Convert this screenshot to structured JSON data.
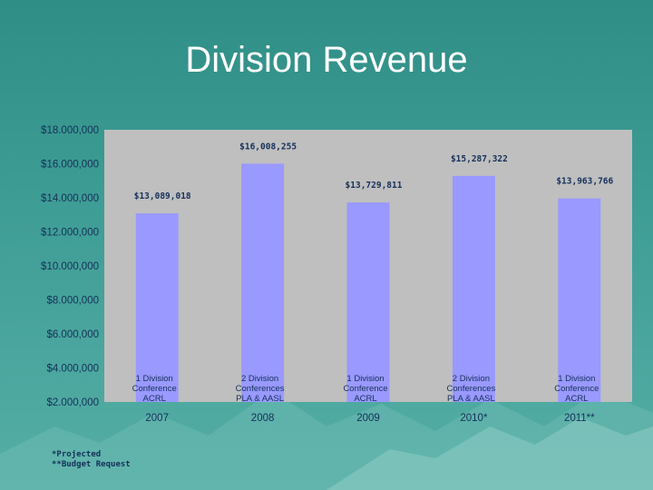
{
  "slide": {
    "title": "Division Revenue",
    "footnotes": [
      "*Projected",
      "**Budget Request"
    ],
    "colors": {
      "background": "#3a988f",
      "plot_area": "#bfbfbf",
      "bar": "#9999ff",
      "bar_label_text": "#15305a",
      "axis_text": "#15305a"
    }
  },
  "chart_data": {
    "type": "bar",
    "title": "",
    "xlabel": "",
    "ylabel": "",
    "ylim": [
      2000000,
      18000000
    ],
    "yticks": [
      2000000,
      4000000,
      6000000,
      8000000,
      10000000,
      12000000,
      14000000,
      16000000,
      18000000
    ],
    "ytick_labels": [
      "$2.000,000",
      "$4.000,000",
      "$6.000,000",
      "$8.000,000",
      "$10.000,000",
      "$12.000,000",
      "$14.000,000",
      "$16.000,000",
      "$18.000,000"
    ],
    "categories": [
      "2007",
      "2008",
      "2009",
      "2010*",
      "2011**"
    ],
    "values": [
      13089018,
      16008255,
      13729811,
      15287322,
      13963766
    ],
    "data_labels": [
      "$13,089,018",
      "$16,008,255",
      "$13,729,811",
      "$15,287,322",
      "$13,963,766"
    ],
    "annotations": [
      [
        "1 Division",
        "Conference",
        "ACRL"
      ],
      [
        "2 Division",
        "Conferences",
        "PLA & AASL"
      ],
      [
        "1 Division",
        "Conference",
        "ACRL"
      ],
      [
        "2 Division",
        "Conferences",
        "PLA & AASL"
      ],
      [
        "1 Division",
        "Conference",
        "ACRL"
      ]
    ],
    "grid": false,
    "legend": "none"
  }
}
